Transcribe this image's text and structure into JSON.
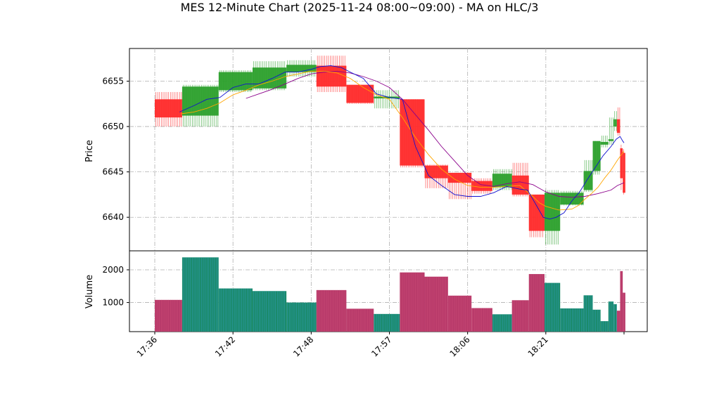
{
  "chart_data": {
    "type": "candlestick",
    "title": "MES 12-Minute Chart (2025-11-24 08:00~09:00) - MA on HLC/3",
    "price_panel": {
      "ylabel": "Price",
      "ylim": [
        6636.3,
        6658.6
      ],
      "yticks": [
        6640,
        6645,
        6650,
        6655
      ],
      "grid": true
    },
    "volume_panel": {
      "ylabel": "Volume",
      "ylim": [
        110,
        2580
      ],
      "yticks": [
        1000,
        2000
      ],
      "yticklabels": [
        "1000",
        "2000"
      ],
      "grid": true
    },
    "x_ticks": [
      {
        "t": 0,
        "label": "17:36"
      },
      {
        "t": 6,
        "label": "17:42"
      },
      {
        "t": 12,
        "label": "17:48"
      },
      {
        "t": 18,
        "label": "17:57"
      },
      {
        "t": 24,
        "label": "18:06"
      },
      {
        "t": 30,
        "label": "18:21"
      },
      {
        "t": 36,
        "label": ""
      }
    ],
    "colors": {
      "up": "#2ca02c",
      "down": "#ff2a2a",
      "vol_up": "#1a8a6a",
      "vol_down": "#b83a6a",
      "ma_fast": "#1010d0",
      "ma_mid": "#ffa500",
      "ma_slow": "#8b008b",
      "grid": "#b0b0b0"
    },
    "candles": [
      {
        "t0": 0.0,
        "t1": 2.1,
        "open": 6653.0,
        "close": 6651.0,
        "high": 6653.8,
        "low": 6650.0
      },
      {
        "t0": 2.1,
        "t1": 4.9,
        "open": 6651.2,
        "close": 6654.4,
        "high": 6654.6,
        "low": 6650.0
      },
      {
        "t0": 4.9,
        "t1": 7.5,
        "open": 6654.0,
        "close": 6656.0,
        "high": 6656.2,
        "low": 6653.8
      },
      {
        "t0": 7.5,
        "t1": 10.1,
        "open": 6654.2,
        "close": 6656.5,
        "high": 6657.2,
        "low": 6654.0
      },
      {
        "t0": 10.1,
        "t1": 12.4,
        "open": 6656.0,
        "close": 6656.8,
        "high": 6657.3,
        "low": 6655.5
      },
      {
        "t0": 12.4,
        "t1": 14.7,
        "open": 6656.7,
        "close": 6654.4,
        "high": 6657.8,
        "low": 6653.8
      },
      {
        "t0": 14.7,
        "t1": 16.8,
        "open": 6654.6,
        "close": 6652.6,
        "high": 6654.6,
        "low": 6652.5
      },
      {
        "t0": 16.8,
        "t1": 18.8,
        "open": 6653.1,
        "close": 6653.3,
        "high": 6654.0,
        "low": 6652.0
      },
      {
        "t0": 18.8,
        "t1": 20.7,
        "open": 6653.0,
        "close": 6645.7,
        "high": 6653.0,
        "low": 6645.5
      },
      {
        "t0": 20.7,
        "t1": 22.5,
        "open": 6645.7,
        "close": 6644.3,
        "high": 6645.8,
        "low": 6643.2
      },
      {
        "t0": 22.5,
        "t1": 24.3,
        "open": 6644.9,
        "close": 6643.8,
        "high": 6644.9,
        "low": 6642.0
      },
      {
        "t0": 24.3,
        "t1": 25.9,
        "open": 6644.0,
        "close": 6642.9,
        "high": 6644.3,
        "low": 6642.6
      },
      {
        "t0": 25.9,
        "t1": 27.4,
        "open": 6643.3,
        "close": 6644.8,
        "high": 6645.3,
        "low": 6643.0
      },
      {
        "t0": 27.4,
        "t1": 28.7,
        "open": 6644.6,
        "close": 6642.5,
        "high": 6646.0,
        "low": 6642.3
      },
      {
        "t0": 28.7,
        "t1": 29.9,
        "open": 6642.5,
        "close": 6638.5,
        "high": 6642.5,
        "low": 6637.8
      },
      {
        "t0": 29.9,
        "t1": 31.1,
        "open": 6638.5,
        "close": 6642.7,
        "high": 6643.0,
        "low": 6637.0
      },
      {
        "t0": 31.1,
        "t1": 32.9,
        "open": 6641.4,
        "close": 6642.7,
        "high": 6642.9,
        "low": 6641.3
      },
      {
        "t0": 32.9,
        "t1": 33.6,
        "open": 6643.0,
        "close": 6645.1,
        "high": 6646.3,
        "low": 6642.8
      },
      {
        "t0": 33.6,
        "t1": 34.2,
        "open": 6645.1,
        "close": 6648.4,
        "high": 6648.4,
        "low": 6644.7
      },
      {
        "t0": 34.2,
        "t1": 34.8,
        "open": 6648.0,
        "close": 6648.3,
        "high": 6649.0,
        "low": 6647.7
      },
      {
        "t0": 34.8,
        "t1": 35.2,
        "open": 6648.4,
        "close": 6648.6,
        "high": 6651.0,
        "low": 6648.0
      },
      {
        "t0": 35.2,
        "t1": 35.45,
        "open": 6650.0,
        "close": 6650.8,
        "high": 6651.7,
        "low": 6649.5
      },
      {
        "t0": 35.45,
        "t1": 35.7,
        "open": 6650.8,
        "close": 6649.3,
        "high": 6652.1,
        "low": 6649.0
      },
      {
        "t0": 35.7,
        "t1": 35.9,
        "open": 6647.6,
        "close": 6644.3,
        "high": 6648.0,
        "low": 6643.0
      },
      {
        "t0": 35.9,
        "t1": 36.1,
        "open": 6647.1,
        "close": 6642.7,
        "high": 6647.5,
        "low": 6642.5
      }
    ],
    "volume": [
      {
        "t0": 0.0,
        "t1": 2.1,
        "value": 1080,
        "dir": "down"
      },
      {
        "t0": 2.1,
        "t1": 4.9,
        "value": 2380,
        "dir": "up"
      },
      {
        "t0": 4.9,
        "t1": 7.5,
        "value": 1430,
        "dir": "up"
      },
      {
        "t0": 7.5,
        "t1": 10.1,
        "value": 1350,
        "dir": "up"
      },
      {
        "t0": 10.1,
        "t1": 12.4,
        "value": 1000,
        "dir": "up"
      },
      {
        "t0": 12.4,
        "t1": 14.7,
        "value": 1380,
        "dir": "down"
      },
      {
        "t0": 14.7,
        "t1": 16.8,
        "value": 810,
        "dir": "down"
      },
      {
        "t0": 16.8,
        "t1": 18.8,
        "value": 650,
        "dir": "up"
      },
      {
        "t0": 18.8,
        "t1": 20.7,
        "value": 1920,
        "dir": "down"
      },
      {
        "t0": 20.7,
        "t1": 22.5,
        "value": 1790,
        "dir": "down"
      },
      {
        "t0": 22.5,
        "t1": 24.3,
        "value": 1210,
        "dir": "down"
      },
      {
        "t0": 24.3,
        "t1": 25.9,
        "value": 830,
        "dir": "down"
      },
      {
        "t0": 25.9,
        "t1": 27.4,
        "value": 640,
        "dir": "up"
      },
      {
        "t0": 27.4,
        "t1": 28.7,
        "value": 1070,
        "dir": "down"
      },
      {
        "t0": 28.7,
        "t1": 29.9,
        "value": 1870,
        "dir": "down"
      },
      {
        "t0": 29.9,
        "t1": 31.1,
        "value": 1600,
        "dir": "up"
      },
      {
        "t0": 31.1,
        "t1": 32.9,
        "value": 820,
        "dir": "up"
      },
      {
        "t0": 32.9,
        "t1": 33.6,
        "value": 1220,
        "dir": "up"
      },
      {
        "t0": 33.6,
        "t1": 34.2,
        "value": 780,
        "dir": "up"
      },
      {
        "t0": 34.2,
        "t1": 34.8,
        "value": 430,
        "dir": "up"
      },
      {
        "t0": 34.8,
        "t1": 35.2,
        "value": 1030,
        "dir": "up"
      },
      {
        "t0": 35.2,
        "t1": 35.45,
        "value": 950,
        "dir": "up"
      },
      {
        "t0": 35.45,
        "t1": 35.7,
        "value": 750,
        "dir": "down"
      },
      {
        "t0": 35.7,
        "t1": 35.9,
        "value": 1960,
        "dir": "down"
      },
      {
        "t0": 35.9,
        "t1": 36.1,
        "value": 1300,
        "dir": "down"
      }
    ],
    "ma_fast": {
      "x": [
        1.9,
        3.0,
        4.0,
        5.0,
        6.0,
        7.0,
        8.0,
        9.0,
        10.0,
        11.0,
        12.0,
        12.7,
        13.5,
        14.3,
        15.0,
        16.0,
        17.0,
        18.0,
        19.0,
        20.0,
        21.0,
        22.0,
        23.0,
        24.0,
        25.0,
        26.0,
        27.0,
        28.0,
        28.6,
        29.2,
        29.8,
        30.3,
        30.8,
        31.4,
        32.0,
        32.6,
        33.2,
        33.8,
        34.4,
        35.0,
        35.4,
        35.7,
        35.9,
        36.0
      ],
      "y": [
        6651.6,
        6652.3,
        6653.0,
        6653.2,
        6654.3,
        6654.7,
        6654.7,
        6655.3,
        6656.0,
        6656.0,
        6656.3,
        6656.6,
        6656.7,
        6656.5,
        6656.0,
        6655.3,
        6653.6,
        6653.2,
        6653.0,
        6647.8,
        6644.6,
        6643.5,
        6642.5,
        6642.3,
        6642.3,
        6642.7,
        6643.4,
        6643.1,
        6643.0,
        6641.5,
        6640.0,
        6639.8,
        6640.0,
        6640.5,
        6641.8,
        6642.8,
        6644.2,
        6645.5,
        6646.8,
        6647.8,
        6648.6,
        6648.9,
        6648.4,
        6648.2
      ]
    },
    "ma_mid": {
      "x": [
        2.0,
        3.0,
        4.0,
        5.0,
        6.0,
        7.0,
        8.0,
        9.0,
        10.0,
        11.0,
        12.0,
        13.0,
        14.0,
        15.0,
        16.0,
        17.0,
        18.0,
        19.0,
        20.0,
        21.0,
        22.0,
        23.0,
        24.0,
        25.0,
        26.0,
        27.0,
        28.0,
        29.0,
        29.5,
        30.0,
        31.0,
        32.0,
        32.5,
        33.0,
        33.5,
        34.0,
        34.5,
        35.0,
        35.5,
        35.8,
        36.0
      ],
      "y": [
        6651.4,
        6651.6,
        6652.0,
        6652.6,
        6653.5,
        6654.0,
        6654.6,
        6655.0,
        6655.5,
        6655.8,
        6656.1,
        6656.1,
        6655.9,
        6655.3,
        6654.3,
        6653.5,
        6653.0,
        6651.0,
        6648.8,
        6646.9,
        6645.3,
        6644.2,
        6643.5,
        6643.3,
        6643.3,
        6643.4,
        6643.5,
        6642.3,
        6641.6,
        6641.2,
        6640.8,
        6640.9,
        6641.3,
        6642.0,
        6642.6,
        6643.3,
        6644.3,
        6645.2,
        6646.3,
        6646.9,
        6647.3
      ]
    },
    "ma_slow": {
      "x": [
        7.0,
        8.0,
        9.0,
        10.0,
        11.0,
        12.0,
        13.0,
        14.0,
        15.0,
        16.0,
        17.0,
        18.0,
        19.0,
        20.0,
        21.0,
        22.0,
        23.0,
        24.0,
        25.0,
        26.0,
        27.0,
        28.0,
        29.0,
        30.0,
        31.0,
        32.0,
        33.0,
        34.0,
        35.0,
        35.5,
        36.0
      ],
      "y": [
        6653.1,
        6653.6,
        6654.1,
        6654.7,
        6655.3,
        6655.8,
        6656.0,
        6656.1,
        6655.9,
        6655.5,
        6655.0,
        6654.3,
        6653.0,
        6651.3,
        6649.6,
        6647.8,
        6646.2,
        6644.6,
        6643.6,
        6643.4,
        6643.7,
        6643.9,
        6643.6,
        6642.8,
        6642.3,
        6642.2,
        6642.3,
        6642.6,
        6643.0,
        6643.5,
        6643.8
      ]
    }
  }
}
